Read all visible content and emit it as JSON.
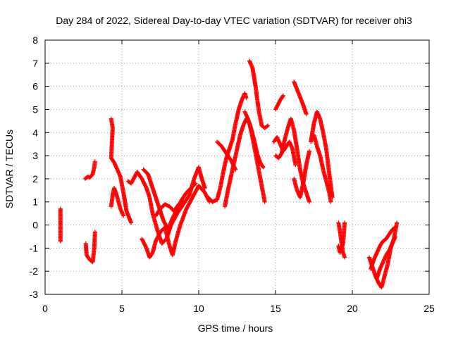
{
  "chart_data": {
    "type": "scatter",
    "title": "Day 284 of 2022, Sidereal Day-to-day VTEC variation (SDTVAR) for receiver ohi3",
    "xlabel": "GPS time / hours",
    "ylabel": "SDTVAR / TECUs",
    "xlim": [
      0,
      25
    ],
    "ylim": [
      -3,
      8
    ],
    "x_ticks": [
      "0",
      "5",
      "10",
      "15",
      "20",
      "25"
    ],
    "y_ticks": [
      "-3",
      "-2",
      "-1",
      "0",
      "1",
      "2",
      "3",
      "4",
      "5",
      "6",
      "7",
      "8"
    ],
    "grid": true,
    "marker": "+",
    "color": "#ff0000",
    "segments": [
      {
        "points": [
          [
            1.0,
            0.7
          ],
          [
            1.0,
            -0.7
          ]
        ]
      },
      {
        "points": [
          [
            2.6,
            2.0
          ],
          [
            2.8,
            2.1
          ],
          [
            2.9,
            2.05
          ],
          [
            3.1,
            2.2
          ],
          [
            3.2,
            2.5
          ],
          [
            3.25,
            2.75
          ]
        ]
      },
      {
        "points": [
          [
            2.65,
            -0.8
          ],
          [
            2.7,
            -1.3
          ],
          [
            2.9,
            -1.5
          ],
          [
            3.1,
            -1.6
          ],
          [
            3.2,
            -1.0
          ],
          [
            3.25,
            -0.3
          ]
        ]
      },
      {
        "points": [
          [
            4.3,
            4.6
          ],
          [
            4.4,
            4.2
          ],
          [
            4.3,
            2.9
          ],
          [
            4.5,
            2.7
          ],
          [
            4.7,
            2.4
          ],
          [
            4.9,
            2.1
          ],
          [
            5.1,
            1.4
          ],
          [
            5.3,
            0.6
          ],
          [
            5.6,
            0.1
          ]
        ]
      },
      {
        "points": [
          [
            4.3,
            0.8
          ],
          [
            4.4,
            1.3
          ],
          [
            4.5,
            1.6
          ],
          [
            4.7,
            1.2
          ],
          [
            4.9,
            0.7
          ],
          [
            5.1,
            0.4
          ]
        ]
      },
      {
        "points": [
          [
            5.4,
            1.9
          ],
          [
            5.6,
            1.8
          ],
          [
            6.0,
            2.3
          ],
          [
            6.3,
            2.0
          ],
          [
            6.6,
            1.6
          ],
          [
            6.8,
            1.2
          ],
          [
            7.0,
            0.5
          ],
          [
            7.3,
            -0.2
          ],
          [
            7.6,
            -0.8
          ],
          [
            7.9,
            -0.6
          ],
          [
            8.2,
            0.0
          ],
          [
            8.6,
            0.5
          ],
          [
            9.0,
            0.9
          ],
          [
            9.4,
            1.3
          ],
          [
            9.7,
            2.0
          ],
          [
            10.0,
            2.5
          ],
          [
            10.2,
            2.0
          ],
          [
            10.4,
            1.6
          ]
        ]
      },
      {
        "points": [
          [
            6.4,
            2.4
          ],
          [
            6.7,
            2.2
          ],
          [
            6.9,
            1.8
          ],
          [
            7.1,
            1.4
          ],
          [
            7.3,
            1.0
          ],
          [
            7.5,
            0.6
          ],
          [
            7.7,
            0.2
          ],
          [
            8.0,
            -0.2
          ],
          [
            8.3,
            0.3
          ],
          [
            8.6,
            0.7
          ],
          [
            8.9,
            1.1
          ],
          [
            9.2,
            1.4
          ],
          [
            9.5,
            1.6
          ],
          [
            9.8,
            1.8
          ]
        ]
      },
      {
        "points": [
          [
            6.3,
            -0.6
          ],
          [
            6.6,
            -1.0
          ],
          [
            6.8,
            -1.4
          ],
          [
            7.0,
            -1.2
          ],
          [
            7.2,
            -0.7
          ],
          [
            7.5,
            -0.3
          ],
          [
            7.8,
            -0.1
          ],
          [
            8.1,
            -0.9
          ],
          [
            8.3,
            -1.3
          ],
          [
            8.5,
            -0.7
          ],
          [
            8.8,
            0.0
          ],
          [
            9.2,
            0.7
          ],
          [
            9.6,
            1.2
          ],
          [
            10.0,
            1.7
          ],
          [
            10.4,
            1.4
          ],
          [
            10.7,
            1.0
          ]
        ]
      },
      {
        "points": [
          [
            7.2,
            0.4
          ],
          [
            7.5,
            0.7
          ],
          [
            7.8,
            0.9
          ],
          [
            8.1,
            0.8
          ],
          [
            8.4,
            0.6
          ],
          [
            8.7,
            0.9
          ],
          [
            9.0,
            1.0
          ]
        ]
      },
      {
        "points": [
          [
            10.6,
            1.2
          ],
          [
            10.9,
            1.0
          ],
          [
            11.2,
            1.1
          ],
          [
            11.4,
            1.6
          ],
          [
            11.6,
            2.3
          ],
          [
            11.8,
            2.9
          ],
          [
            12.0,
            3.3
          ],
          [
            12.2,
            3.7
          ],
          [
            12.4,
            4.4
          ],
          [
            12.6,
            5.0
          ],
          [
            12.8,
            5.4
          ],
          [
            13.0,
            5.7
          ],
          [
            13.1,
            5.5
          ]
        ]
      },
      {
        "points": [
          [
            11.7,
            0.8
          ],
          [
            11.9,
            1.5
          ],
          [
            12.1,
            2.1
          ],
          [
            12.3,
            2.7
          ],
          [
            12.5,
            3.3
          ],
          [
            12.7,
            3.9
          ],
          [
            12.9,
            4.3
          ],
          [
            13.1,
            4.6
          ],
          [
            13.3,
            4.4
          ],
          [
            13.5,
            3.8
          ],
          [
            13.7,
            3.1
          ],
          [
            13.9,
            2.4
          ],
          [
            14.1,
            1.7
          ],
          [
            14.3,
            1.0
          ]
        ]
      },
      {
        "points": [
          [
            11.2,
            3.6
          ],
          [
            11.5,
            3.4
          ],
          [
            11.8,
            3.1
          ],
          [
            12.1,
            2.8
          ],
          [
            12.4,
            2.4
          ]
        ]
      },
      {
        "points": [
          [
            13.3,
            7.1
          ],
          [
            13.5,
            6.8
          ],
          [
            13.7,
            6.0
          ],
          [
            13.9,
            5.0
          ],
          [
            14.1,
            4.3
          ],
          [
            14.3,
            4.2
          ],
          [
            14.5,
            4.3
          ]
        ]
      },
      {
        "points": [
          [
            13.0,
            4.9
          ],
          [
            13.2,
            4.6
          ],
          [
            13.4,
            4.2
          ],
          [
            13.6,
            3.7
          ],
          [
            13.8,
            3.1
          ],
          [
            14.0,
            2.7
          ],
          [
            14.2,
            2.5
          ]
        ]
      },
      {
        "points": [
          [
            14.9,
            3.6
          ],
          [
            15.1,
            3.8
          ],
          [
            15.3,
            3.5
          ],
          [
            15.5,
            3.2
          ],
          [
            15.7,
            3.4
          ],
          [
            15.9,
            3.6
          ],
          [
            16.1,
            3.3
          ],
          [
            16.3,
            2.6
          ]
        ]
      },
      {
        "points": [
          [
            15.0,
            3.0
          ],
          [
            15.2,
            2.9
          ],
          [
            15.4,
            3.1
          ],
          [
            15.6,
            3.7
          ],
          [
            15.8,
            4.2
          ],
          [
            16.0,
            4.6
          ],
          [
            16.2,
            4.1
          ],
          [
            16.4,
            3.3
          ],
          [
            16.6,
            2.4
          ],
          [
            16.8,
            1.8
          ],
          [
            17.0,
            1.4
          ],
          [
            17.2,
            1.0
          ]
        ]
      },
      {
        "points": [
          [
            15.0,
            5.0
          ],
          [
            15.3,
            5.4
          ],
          [
            15.5,
            5.6
          ]
        ]
      },
      {
        "points": [
          [
            16.2,
            6.2
          ],
          [
            16.5,
            5.7
          ],
          [
            16.8,
            5.2
          ],
          [
            17.0,
            4.8
          ]
        ]
      },
      {
        "points": [
          [
            16.2,
            2.0
          ],
          [
            16.4,
            1.5
          ],
          [
            16.6,
            1.2
          ],
          [
            16.8,
            1.8
          ],
          [
            17.0,
            2.6
          ],
          [
            17.2,
            3.2
          ]
        ]
      },
      {
        "points": [
          [
            17.3,
            3.6
          ],
          [
            17.5,
            4.4
          ],
          [
            17.7,
            4.9
          ],
          [
            17.9,
            4.6
          ],
          [
            18.1,
            4.0
          ],
          [
            18.3,
            3.3
          ],
          [
            18.5,
            2.2
          ],
          [
            18.7,
            1.2
          ]
        ]
      },
      {
        "points": [
          [
            17.5,
            3.9
          ],
          [
            17.7,
            3.4
          ],
          [
            17.9,
            3.0
          ],
          [
            18.1,
            2.4
          ],
          [
            18.3,
            1.9
          ],
          [
            18.5,
            1.4
          ],
          [
            18.6,
            1.0
          ]
        ]
      },
      {
        "points": [
          [
            19.1,
            0.1
          ],
          [
            19.2,
            -0.3
          ],
          [
            19.3,
            -0.8
          ],
          [
            19.4,
            -1.2
          ],
          [
            19.5,
            -1.4
          ]
        ]
      },
      {
        "points": [
          [
            19.1,
            -0.9
          ],
          [
            19.2,
            -1.2
          ],
          [
            19.4,
            -0.8
          ],
          [
            19.5,
            0.1
          ]
        ]
      },
      {
        "points": [
          [
            21.1,
            -1.4
          ],
          [
            21.3,
            -1.8
          ],
          [
            21.5,
            -2.2
          ],
          [
            21.7,
            -2.5
          ],
          [
            21.9,
            -2.7
          ],
          [
            22.1,
            -2.2
          ],
          [
            22.3,
            -1.7
          ],
          [
            22.5,
            -1.0
          ],
          [
            22.7,
            -0.6
          ],
          [
            22.9,
            0.1
          ]
        ]
      },
      {
        "points": [
          [
            21.2,
            -1.9
          ],
          [
            21.4,
            -1.5
          ],
          [
            21.6,
            -1.2
          ],
          [
            21.8,
            -0.9
          ],
          [
            22.0,
            -0.7
          ],
          [
            22.2,
            -0.6
          ],
          [
            22.4,
            -0.4
          ],
          [
            22.6,
            -0.2
          ],
          [
            22.8,
            -0.1
          ]
        ]
      },
      {
        "points": [
          [
            21.6,
            -2.3
          ],
          [
            21.8,
            -1.9
          ],
          [
            22.0,
            -1.6
          ],
          [
            22.2,
            -1.3
          ],
          [
            22.4,
            -1.1
          ],
          [
            22.6,
            -0.8
          ],
          [
            22.8,
            -0.5
          ]
        ]
      }
    ]
  }
}
